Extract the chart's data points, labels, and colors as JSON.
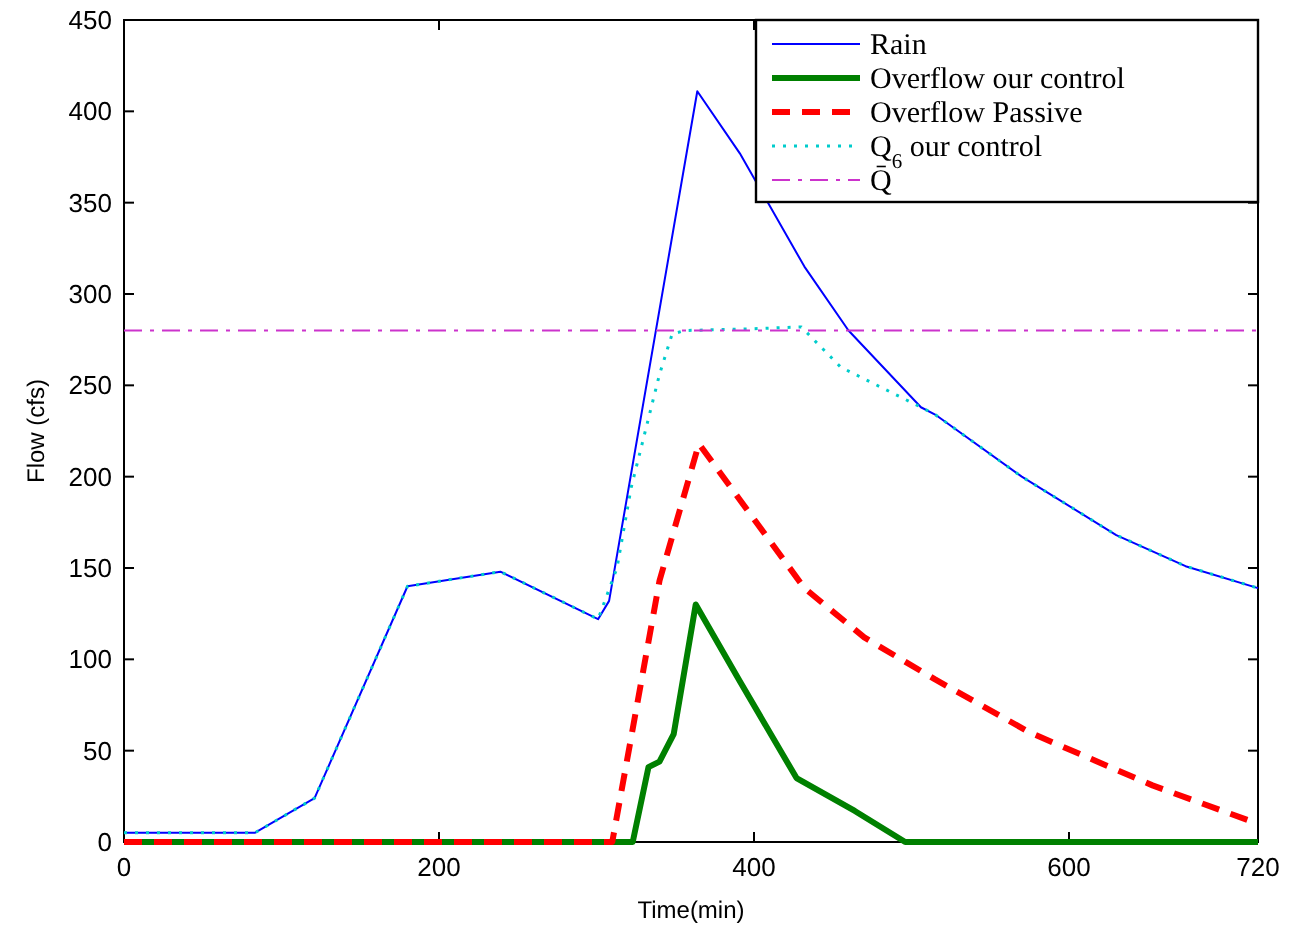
{
  "chart_data": {
    "type": "line",
    "xlabel": "Time(min)",
    "ylabel": "Flow (cfs)",
    "xlim": [
      0,
      720
    ],
    "ylim": [
      0,
      450
    ],
    "xticks": [
      0,
      200,
      400,
      600,
      720
    ],
    "yticks": [
      0,
      50,
      100,
      150,
      200,
      250,
      300,
      350,
      400,
      450
    ],
    "grid": false,
    "legend": "top right",
    "series": [
      {
        "name": "Rain",
        "color": "#0000ff",
        "line_style": "solid",
        "x": [
          0,
          83,
          121,
          180,
          239,
          301,
          308,
          364,
          391,
          432,
          460,
          506,
          515,
          570,
          630,
          674,
          720
        ],
        "values": [
          5,
          5,
          24,
          140,
          148,
          122,
          132,
          411,
          377,
          315,
          280,
          238,
          234,
          200,
          168,
          151,
          139
        ]
      },
      {
        "name": "Overflow our control",
        "color": "#008000",
        "line_style": "solid",
        "x": [
          0,
          323,
          333,
          340,
          349,
          363,
          391,
          427,
          464,
          496,
          720
        ],
        "values": [
          0,
          0,
          41,
          44,
          59,
          130,
          88,
          35,
          17,
          0,
          0
        ]
      },
      {
        "name": "Overflow Passive",
        "color": "#ff0000",
        "line_style": "dashed",
        "x": [
          0,
          310,
          340,
          365,
          432,
          470,
          515,
          575,
          653,
          720
        ],
        "values": [
          0,
          0,
          143,
          218,
          139,
          112,
          89,
          60,
          31,
          10
        ]
      },
      {
        "name": "Q$_{6}$ our control",
        "color": "#00cccc",
        "line_style": "dotted",
        "x": [
          0,
          83,
          121,
          180,
          239,
          301,
          313,
          322,
          340,
          348,
          356,
          400,
          430,
          455,
          506,
          515,
          570,
          630,
          674,
          720
        ],
        "values": [
          5,
          5,
          24,
          140,
          148,
          122,
          150,
          194,
          256,
          278,
          280,
          281,
          282,
          260,
          238,
          234,
          200,
          168,
          151,
          139
        ]
      },
      {
        "name": "Q̄",
        "color": "#cc33cc",
        "line_style": "dashdot",
        "x": [
          0,
          720
        ],
        "values": [
          280,
          280
        ]
      }
    ]
  }
}
